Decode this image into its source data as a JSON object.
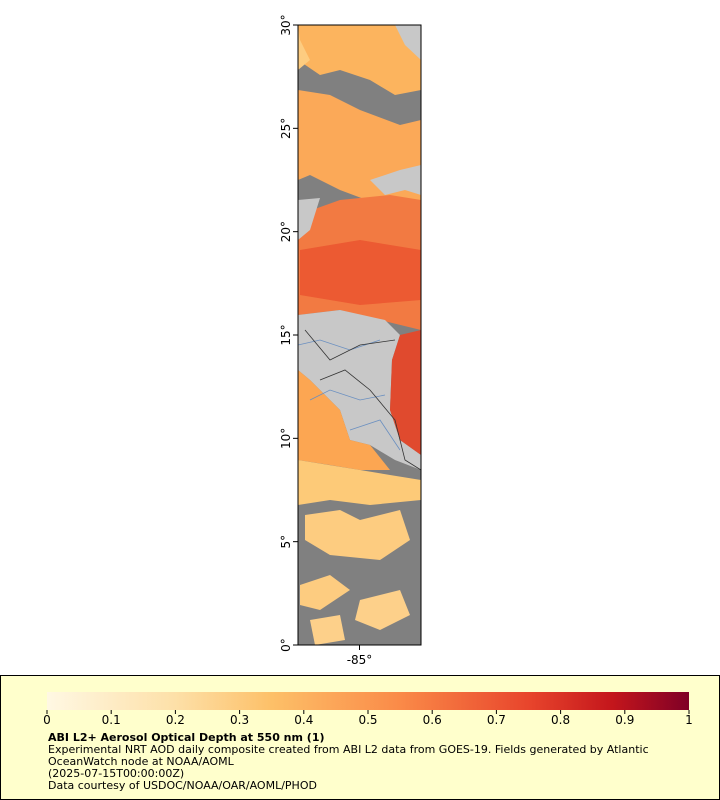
{
  "map": {
    "xlim": [
      -88,
      -82
    ],
    "ylim": [
      0,
      30
    ],
    "xticks": [
      {
        "value": -85,
        "label": "-85°"
      }
    ],
    "yticks": [
      {
        "value": 0,
        "label": "0°"
      },
      {
        "value": 5,
        "label": "5°"
      },
      {
        "value": 10,
        "label": "10°"
      },
      {
        "value": 15,
        "label": "15°"
      },
      {
        "value": 20,
        "label": "20°"
      },
      {
        "value": 25,
        "label": "25°"
      },
      {
        "value": 30,
        "label": "30°"
      }
    ]
  },
  "colorbar": {
    "lim": [
      0,
      1
    ],
    "ticks": [
      0,
      0.1,
      0.2,
      0.3,
      0.4,
      0.5,
      0.6,
      0.7,
      0.8,
      0.9,
      1
    ]
  },
  "caption": {
    "title": "ABI L2+ Aerosol Optical Depth at 550 nm (1)",
    "description": "Experimental NRT AOD daily composite created from ABI L2 data from GOES-19. Fields generated by Atlantic OceanWatch node at NOAA/AOML",
    "time": "(2025-07-15T00:00:00Z)",
    "credit": "Data courtesy of USDOC/NOAA/OAR/AOML/PHOD"
  }
}
